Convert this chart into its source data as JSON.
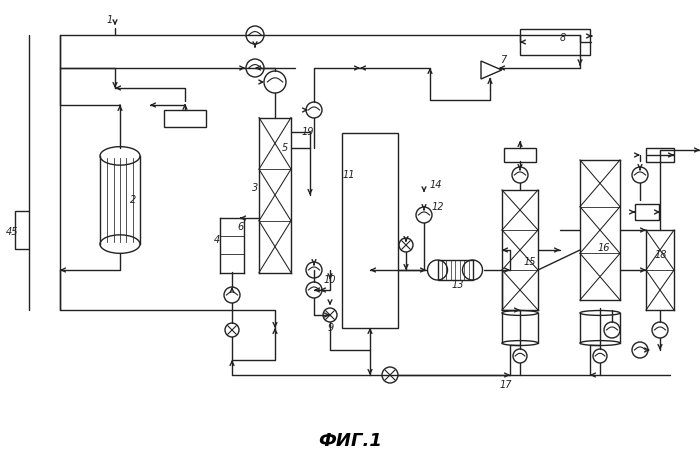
{
  "title": "ФИГ.1",
  "bg": "#ffffff",
  "lc": "#222222",
  "lw": 1.0,
  "fig_w": 7.0,
  "fig_h": 4.63,
  "dpi": 100
}
